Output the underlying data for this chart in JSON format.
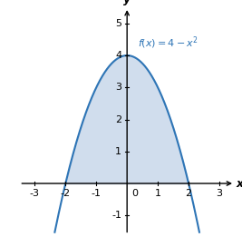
{
  "xlim": [
    -3.5,
    3.5
  ],
  "ylim": [
    -1.6,
    5.5
  ],
  "xticks": [
    -3,
    -2,
    -1,
    1,
    2,
    3
  ],
  "yticks": [
    -1,
    1,
    2,
    3,
    4,
    5
  ],
  "xlabel": "x",
  "ylabel": "y",
  "curve_color": "#2e75b6",
  "fill_color": "#b8cce4",
  "fill_alpha": 0.65,
  "label_color": "#2e75b6",
  "background_color": "#ffffff",
  "figsize": [
    2.67,
    2.72
  ],
  "dpi": 100,
  "curve_xmin": -2.35,
  "curve_xmax": 2.35,
  "fill_xmin": -2.0,
  "fill_xmax": 2.0
}
